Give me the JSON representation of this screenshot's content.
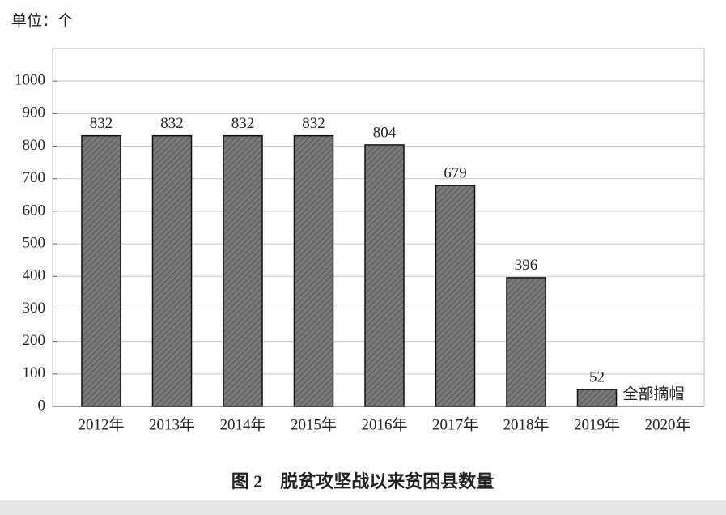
{
  "chart_data": {
    "type": "bar",
    "unit_label": "单位：个",
    "title": "图 2　脱贫攻坚战以来贫困县数量",
    "categories": [
      "2012年",
      "2013年",
      "2014年",
      "2015年",
      "2016年",
      "2017年",
      "2018年",
      "2019年",
      "2020年"
    ],
    "values": [
      832,
      832,
      832,
      832,
      804,
      679,
      396,
      52,
      null
    ],
    "annotation": "全部摘帽",
    "color": "#6e6e6e",
    "ylim": [
      0,
      1100
    ],
    "yticks": [
      0,
      100,
      200,
      300,
      400,
      500,
      600,
      700,
      800,
      900,
      1000
    ],
    "grid": true
  }
}
